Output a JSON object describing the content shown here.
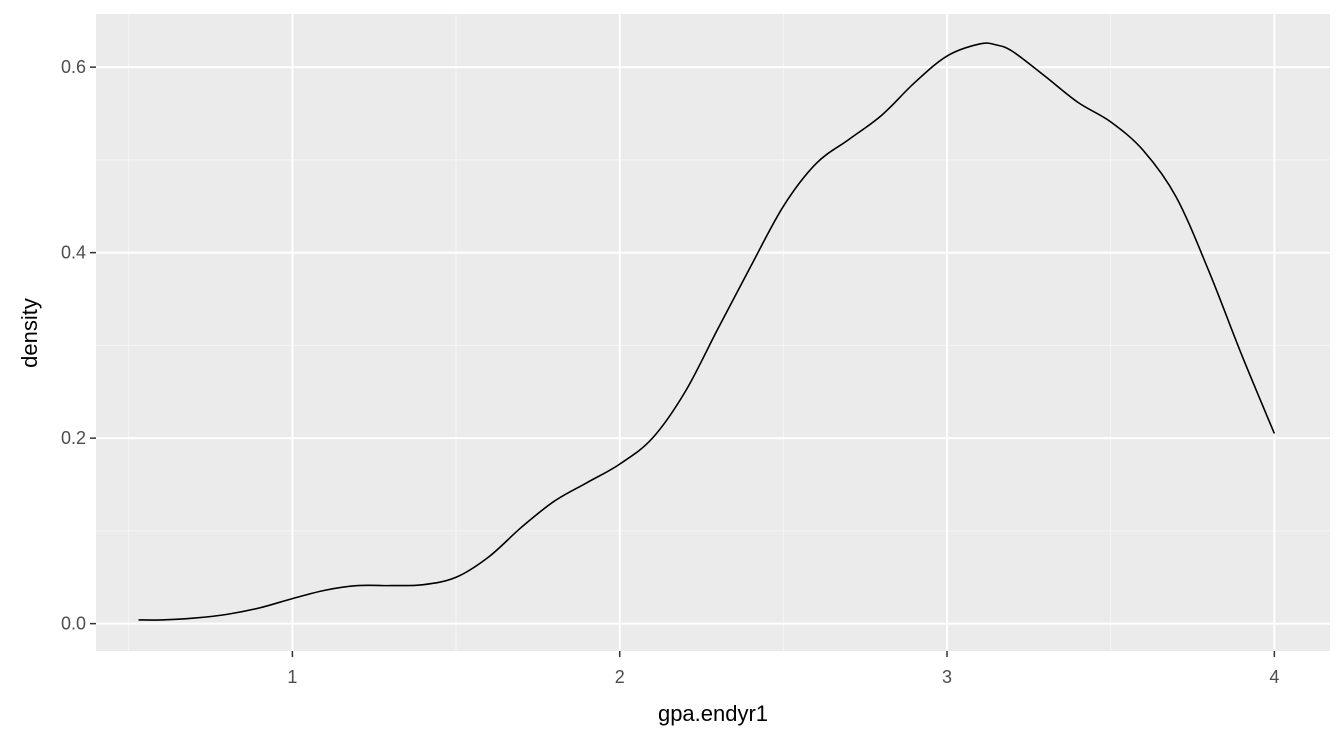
{
  "chart_data": {
    "type": "line",
    "xlabel": "gpa.endyr1",
    "ylabel": "density",
    "xlim": [
      0.4,
      4.17
    ],
    "ylim": [
      -0.0295,
      0.6573
    ],
    "x_ticks": [
      1,
      2,
      3,
      4
    ],
    "x_tick_labels": [
      "1",
      "2",
      "3",
      "4"
    ],
    "x_minor_ticks": [
      0.5,
      1.5,
      2.5,
      3.5
    ],
    "y_ticks": [
      0.0,
      0.2,
      0.4,
      0.6
    ],
    "y_tick_labels": [
      "0.0",
      "0.2",
      "0.4",
      "0.6"
    ],
    "y_minor_ticks": [
      0.1,
      0.3,
      0.5
    ],
    "grid": true,
    "legend": "none",
    "series": [
      {
        "x": [
          0.53,
          0.6,
          0.7,
          0.8,
          0.9,
          1.0,
          1.1,
          1.2,
          1.3,
          1.4,
          1.5,
          1.6,
          1.7,
          1.8,
          1.9,
          2.0,
          2.1,
          2.2,
          2.3,
          2.4,
          2.5,
          2.6,
          2.7,
          2.8,
          2.9,
          3.0,
          3.1,
          3.15,
          3.2,
          3.3,
          3.4,
          3.5,
          3.6,
          3.7,
          3.8,
          3.9,
          4.0
        ],
        "values": [
          0.004,
          0.004,
          0.006,
          0.01,
          0.017,
          0.027,
          0.036,
          0.041,
          0.041,
          0.042,
          0.05,
          0.072,
          0.104,
          0.132,
          0.152,
          0.172,
          0.2,
          0.25,
          0.318,
          0.385,
          0.45,
          0.496,
          0.522,
          0.548,
          0.583,
          0.612,
          0.625,
          0.624,
          0.617,
          0.59,
          0.562,
          0.541,
          0.51,
          0.46,
          0.38,
          0.29,
          0.205
        ],
        "color": "#000000"
      }
    ],
    "colors": {
      "panel_background": "#ebebeb",
      "grid_major": "#ffffff",
      "grid_minor": "#f5f5f5",
      "tick_label": "#4d4d4d",
      "axis_tick": "#333333"
    }
  }
}
